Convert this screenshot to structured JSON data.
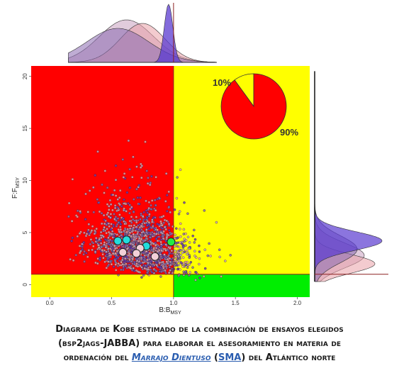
{
  "chart_data": {
    "type": "scatter",
    "title": "",
    "xlabel": "B:B",
    "xlabel_sub": "MSY",
    "ylabel": "F:F",
    "ylabel_sub": "MSY",
    "xlim": [
      -0.15,
      2.1
    ],
    "ylim": [
      -1.2,
      21
    ],
    "x_ticks": [
      0.0,
      0.5,
      1.0,
      1.5,
      2.0
    ],
    "x_tick_labels": [
      "0.0",
      "0.5",
      "1.0",
      "1.5",
      "2.0"
    ],
    "y_ticks": [
      0,
      5,
      10,
      15,
      20
    ],
    "y_tick_labels": [
      "0",
      "5",
      "10",
      "15",
      "20"
    ],
    "reference_lines": {
      "b_bmsy": 1.0,
      "f_fmsy": 1.0
    },
    "quadrants": [
      {
        "name": "overfished-overfishing",
        "x": [
          -0.15,
          1.0
        ],
        "y": [
          1.0,
          21
        ],
        "color": "#ff0000"
      },
      {
        "name": "not-overfished-overfishing",
        "x": [
          1.0,
          2.1
        ],
        "y": [
          1.0,
          21
        ],
        "color": "#ffff00"
      },
      {
        "name": "overfished-no-overfishing",
        "x": [
          -0.15,
          1.0
        ],
        "y": [
          -1.2,
          1.0
        ],
        "color": "#ffff00"
      },
      {
        "name": "not-overfished-no-overfishing",
        "x": [
          1.0,
          2.1
        ],
        "y": [
          -1.2,
          1.0
        ],
        "color": "#00ee00"
      }
    ],
    "highlight_points": [
      {
        "x": 0.55,
        "y": 4.2,
        "color": "#22dddd"
      },
      {
        "x": 0.62,
        "y": 4.3,
        "color": "#22dddd"
      },
      {
        "x": 0.78,
        "y": 3.7,
        "color": "#22dddd"
      },
      {
        "x": 0.73,
        "y": 3.5,
        "color": "#f2d0d8"
      },
      {
        "x": 0.7,
        "y": 3.0,
        "color": "#f2d0d8"
      },
      {
        "x": 0.59,
        "y": 3.1,
        "color": "#f2d0d8"
      },
      {
        "x": 0.85,
        "y": 2.7,
        "color": "#f2d0d8"
      },
      {
        "x": 0.98,
        "y": 4.1,
        "color": "#22ee44"
      }
    ],
    "pie": {
      "slices": [
        {
          "label": "10%",
          "value": 10,
          "color": "#ffff00"
        },
        {
          "label": "90%",
          "value": 90,
          "color": "#ff0000"
        }
      ]
    },
    "series_colors": [
      "#6a3bb5",
      "#e9a0a8",
      "#c9a0c0",
      "#8a6ab0"
    ]
  },
  "caption": {
    "line1": "Diagrama de Kobe estimado de la combinación de ensayos elegidos",
    "line2": "(bsp2jags-JABBA) para elaborar el asesoramiento en materia de",
    "line3_a": "ordenación del ",
    "line3_link1": "Marrajo Dientuso",
    "line3_b": " (",
    "line3_link2": "SMA",
    "line3_c": ") del Atlántico norte"
  }
}
